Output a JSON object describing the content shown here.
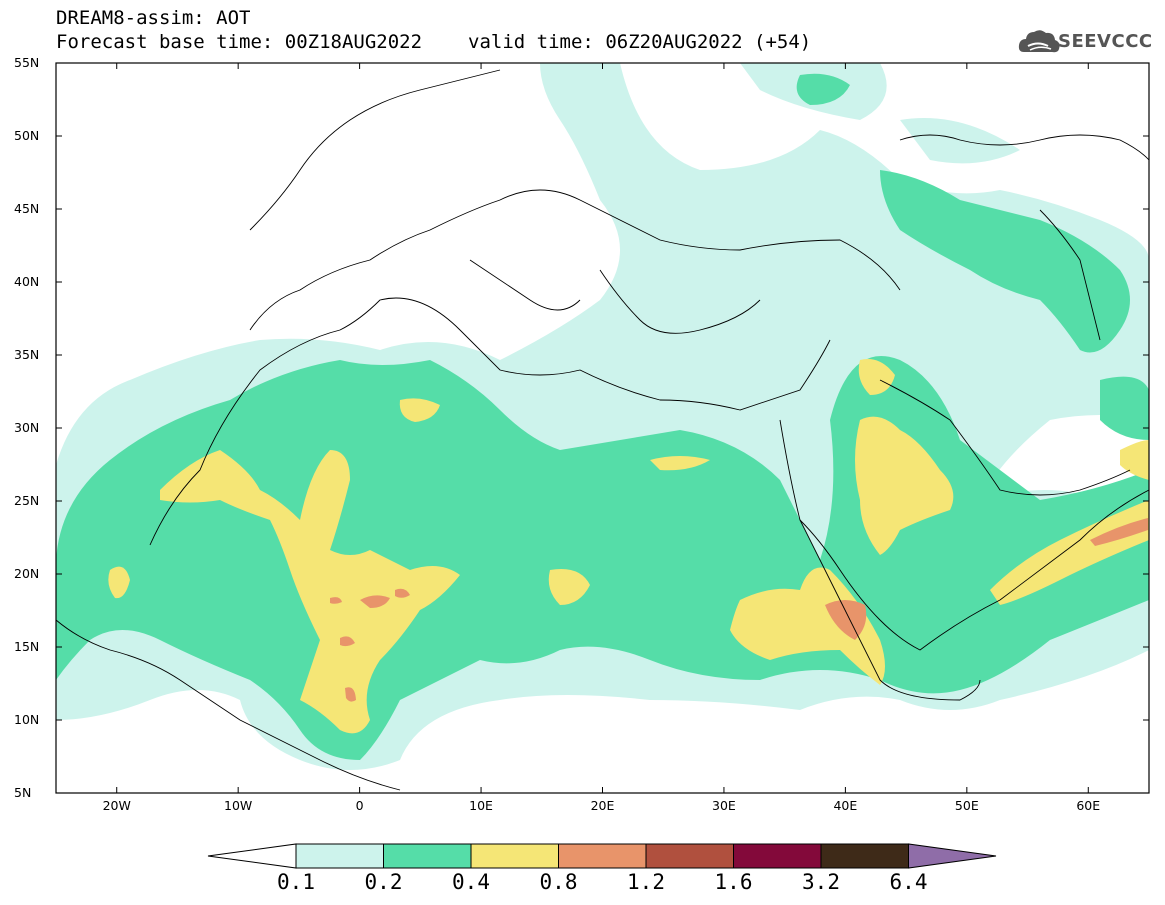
{
  "header": {
    "title_model": "DREAM8-assim: AOT",
    "base_time": "Forecast base time: 00Z18AUG2022",
    "valid_time": "valid time: 06Z20AUG2022 (+54)",
    "logo_text": "SEEVCCC"
  },
  "map": {
    "lon_range": [
      -25,
      65
    ],
    "lat_range": [
      5,
      55
    ],
    "lat_ticks": [
      "55N",
      "50N",
      "45N",
      "40N",
      "35N",
      "30N",
      "25N",
      "20N",
      "15N",
      "10N",
      "5N"
    ],
    "lon_ticks": [
      "20W",
      "10W",
      "0",
      "10E",
      "20E",
      "30E",
      "40E",
      "50E",
      "60E"
    ]
  },
  "colorbar": {
    "levels": [
      "0.1",
      "0.2",
      "0.4",
      "0.8",
      "1.2",
      "1.6",
      "3.2",
      "6.4"
    ],
    "colors": [
      "#ffffff",
      "#cdf3ec",
      "#55dda8",
      "#f5e676",
      "#e8946a",
      "#b0503e",
      "#83093a",
      "#3e2a18",
      "#8f6da8"
    ]
  }
}
